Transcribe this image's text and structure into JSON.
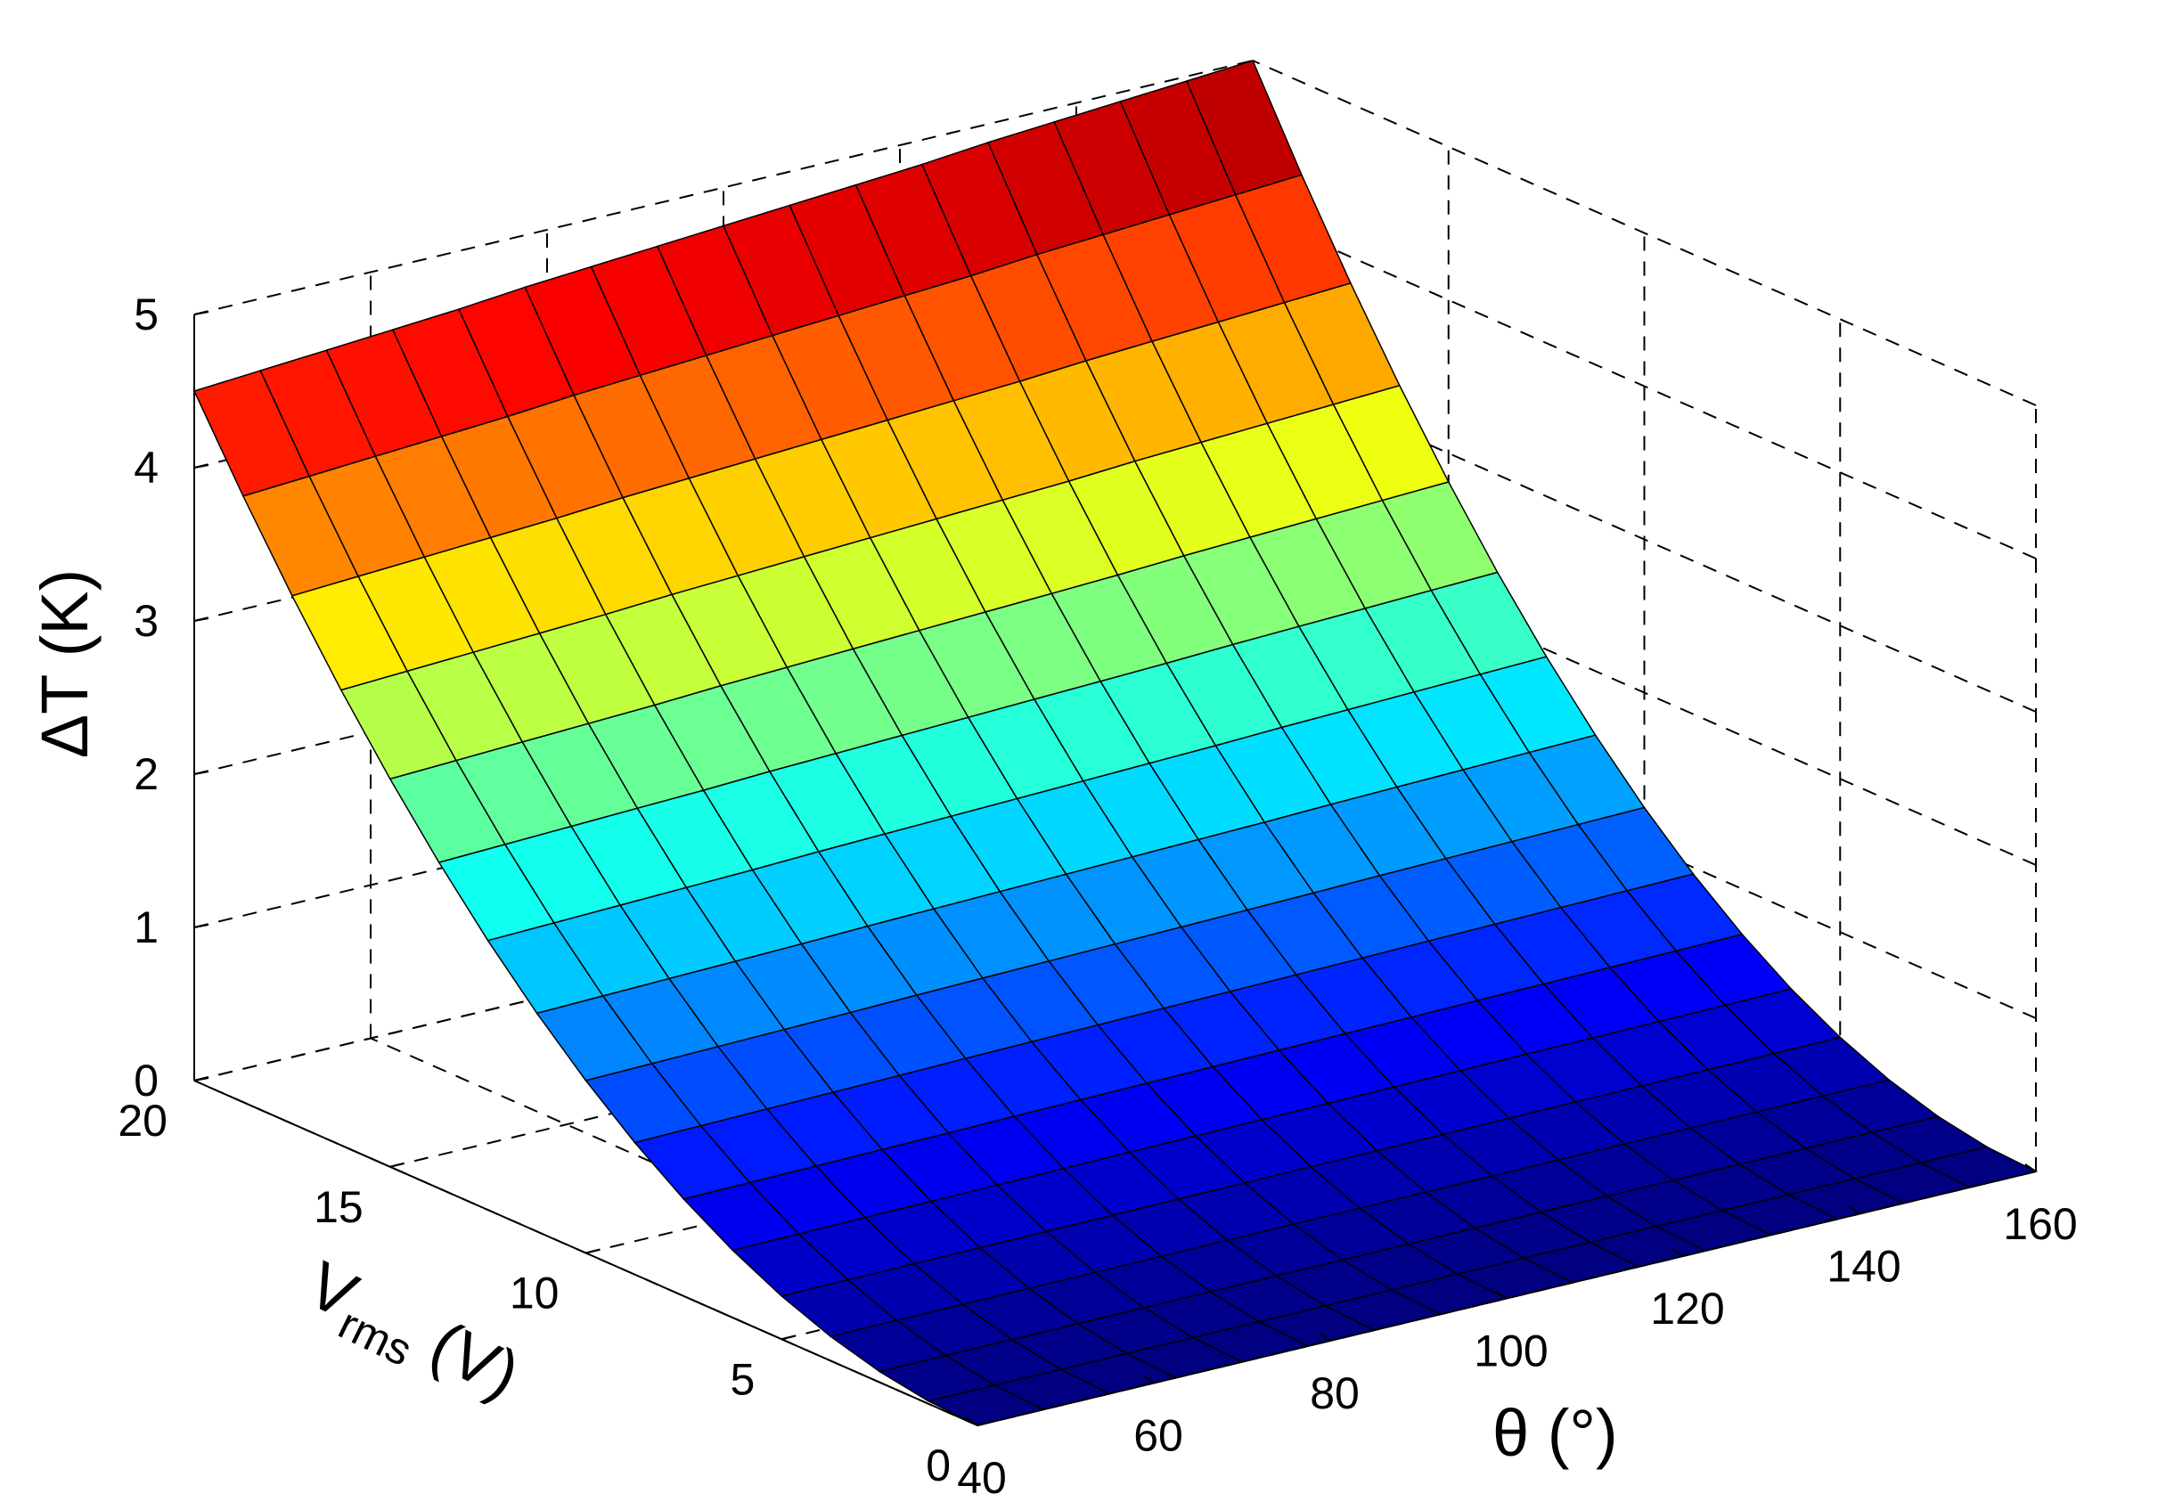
{
  "chart_data": {
    "type": "surface",
    "title": "",
    "xlabel": "θ (°)",
    "ylabel_base": "V",
    "ylabel_sub": "rms",
    "ylabel_tail": " (V)",
    "zlabel": "ΔT (K)",
    "xlim": [
      40,
      160
    ],
    "ylim": [
      0,
      20
    ],
    "zlim": [
      0,
      5
    ],
    "x_ticks": [
      "40",
      "60",
      "80",
      "100",
      "120",
      "140",
      "160"
    ],
    "y_ticks": [
      "0",
      "5",
      "10",
      "15",
      "20"
    ],
    "z_ticks": [
      "0",
      "1",
      "2",
      "3",
      "4",
      "5"
    ],
    "x": [
      40,
      47.5,
      55,
      62.5,
      70,
      77.5,
      85,
      92.5,
      100,
      107.5,
      115,
      122.5,
      130,
      137.5,
      145,
      152.5,
      160
    ],
    "y": [
      0,
      1.25,
      2.5,
      3.75,
      5,
      6.25,
      7.5,
      8.75,
      10,
      11.25,
      12.5,
      13.75,
      15,
      16.25,
      17.5,
      18.75,
      20
    ],
    "z_model": "dT = c(theta) * (Vrms/20)^2, with c(40) = 4.5 rising to c(160) = 5.0",
    "z_at_vmax": [
      4.5,
      4.53,
      4.56,
      4.59,
      4.62,
      4.66,
      4.69,
      4.72,
      4.75,
      4.78,
      4.81,
      4.84,
      4.88,
      4.91,
      4.94,
      4.97,
      5.0
    ],
    "colormap": "jet",
    "grid": true
  }
}
